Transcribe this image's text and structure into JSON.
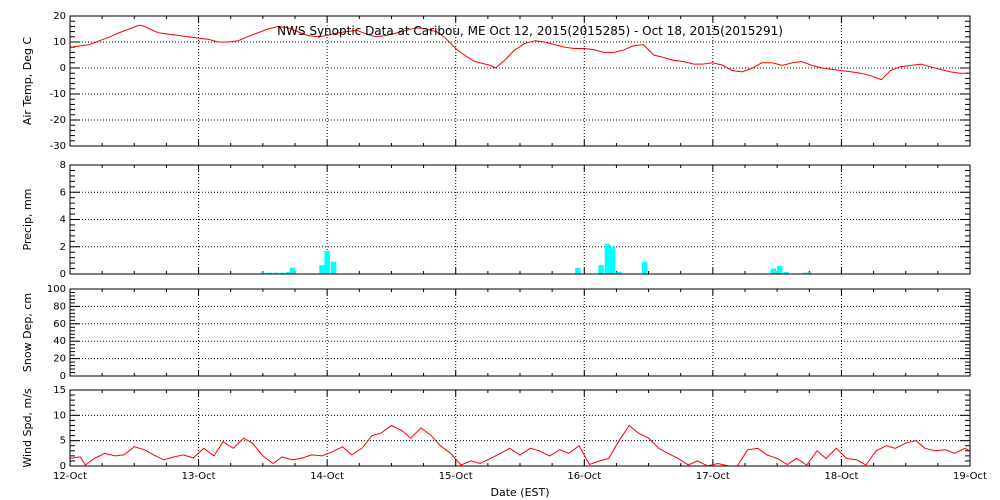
{
  "title": "NWS Synoptic Data at Caribou, ME   Oct 12, 2015(2015285) - Oct 18, 2015(2015291)",
  "xlabel": "Date (EST)",
  "colors": {
    "air_temp": "#ff0000",
    "precip": "#00ffff",
    "snow": "#0000ff",
    "wind": "#ff0000",
    "grid": "#000000"
  },
  "chart_data": [
    {
      "type": "line",
      "ylabel": "Air Temp, Deg C",
      "ylim": [
        -30,
        20
      ],
      "yticks": [
        -30,
        -20,
        -10,
        0,
        10,
        20
      ],
      "xlim": [
        0,
        7
      ],
      "xtick_labels": [
        "12-Oct",
        "13-Oct",
        "14-Oct",
        "15-Oct",
        "16-Oct",
        "17-Oct",
        "18-Oct",
        "19-Oct"
      ],
      "grid": true,
      "series": [
        {
          "x": [
            0.0,
            0.08,
            0.15,
            0.23,
            0.31,
            0.38,
            0.46,
            0.54,
            0.58,
            0.62,
            0.69,
            0.77,
            0.85,
            0.92,
            1.0,
            1.08,
            1.15,
            1.23,
            1.31,
            1.38,
            1.46,
            1.54,
            1.62,
            1.69,
            1.77,
            1.85,
            1.92,
            2.0,
            2.08,
            2.15,
            2.23,
            2.31,
            2.38,
            2.46,
            2.54,
            2.62,
            2.69,
            2.77,
            2.85,
            2.92,
            3.0,
            3.08,
            3.15,
            3.23,
            3.27,
            3.31,
            3.38,
            3.46,
            3.54,
            3.62,
            3.69,
            3.77,
            3.85,
            3.92,
            4.0,
            4.08,
            4.15,
            4.23,
            4.31,
            4.38,
            4.46,
            4.54,
            4.62,
            4.69,
            4.77,
            4.85,
            4.92,
            5.0,
            5.08,
            5.15,
            5.23,
            5.31,
            5.38,
            5.46,
            5.54,
            5.62,
            5.69,
            5.77,
            5.85,
            5.92,
            6.0,
            6.08,
            6.15,
            6.23,
            6.31,
            6.38,
            6.46,
            6.54,
            6.62,
            6.69,
            6.77,
            6.85,
            6.92,
            7.0
          ],
          "y": [
            8,
            8.5,
            9,
            10.5,
            12,
            13.5,
            15,
            16.5,
            16,
            15,
            13.5,
            13,
            12.5,
            12,
            11.5,
            11,
            10,
            10,
            10.5,
            12,
            13.5,
            15,
            16,
            15.5,
            14,
            12.5,
            12,
            12.5,
            13.5,
            14,
            14.5,
            13,
            12,
            12.5,
            13.5,
            14.5,
            15.5,
            15,
            14,
            11.5,
            7.5,
            4.5,
            2.5,
            1.5,
            1,
            0,
            3,
            7,
            9.5,
            10.5,
            10,
            9,
            8,
            7.5,
            7.5,
            7,
            6,
            6,
            7,
            8.5,
            9,
            5,
            4,
            3,
            2.5,
            1.5,
            1.5,
            2,
            1,
            -1,
            -1.5,
            0,
            2,
            2,
            1,
            2,
            2.5,
            1,
            0,
            -0.5,
            -1,
            -1.5,
            -2,
            -3,
            -4.5,
            -1,
            0.5,
            1,
            1.5,
            0.5,
            -0.5,
            -1.5,
            -2,
            -2
          ]
        }
      ]
    },
    {
      "type": "bar",
      "ylabel": "Precip, mm",
      "ylim": [
        0,
        8
      ],
      "yticks": [
        0,
        2,
        4,
        6,
        8
      ],
      "xlim": [
        0,
        7
      ],
      "grid": true,
      "x": [
        1.5,
        1.55,
        1.6,
        1.65,
        1.7,
        1.73,
        1.96,
        2.0,
        2.05,
        3.95,
        4.13,
        4.18,
        4.22,
        4.27,
        4.47,
        5.47,
        5.52,
        5.57,
        5.72,
        5.75
      ],
      "values": [
        0.1,
        0.1,
        0.1,
        0.1,
        0.15,
        0.45,
        0.65,
        1.7,
        0.9,
        0.45,
        0.65,
        2.2,
        2.0,
        0.15,
        0.9,
        0.4,
        0.6,
        0.15,
        0.1,
        0.1
      ]
    },
    {
      "type": "line",
      "ylabel": "Snow Dep, cm",
      "ylim": [
        0,
        100
      ],
      "yticks": [
        0,
        20,
        40,
        60,
        80,
        100
      ],
      "xlim": [
        0,
        7
      ],
      "grid": true,
      "series": []
    },
    {
      "type": "line",
      "ylabel": "Wind Spd, m/s",
      "ylim": [
        0,
        15
      ],
      "yticks": [
        0,
        5,
        10,
        15
      ],
      "xlim": [
        0,
        7
      ],
      "grid": true,
      "series": [
        {
          "x": [
            0.0,
            0.08,
            0.12,
            0.19,
            0.27,
            0.35,
            0.42,
            0.5,
            0.58,
            0.65,
            0.73,
            0.81,
            0.88,
            0.96,
            1.04,
            1.12,
            1.19,
            1.27,
            1.35,
            1.42,
            1.5,
            1.58,
            1.65,
            1.73,
            1.81,
            1.88,
            1.96,
            2.04,
            2.12,
            2.19,
            2.27,
            2.35,
            2.42,
            2.5,
            2.58,
            2.65,
            2.73,
            2.81,
            2.88,
            2.96,
            3.04,
            3.12,
            3.19,
            3.27,
            3.35,
            3.42,
            3.5,
            3.58,
            3.65,
            3.73,
            3.81,
            3.88,
            3.96,
            4.04,
            4.12,
            4.19,
            4.27,
            4.35,
            4.42,
            4.5,
            4.58,
            4.65,
            4.73,
            4.81,
            4.88,
            4.96,
            5.04,
            5.12,
            5.19,
            5.27,
            5.35,
            5.42,
            5.5,
            5.58,
            5.65,
            5.73,
            5.81,
            5.88,
            5.96,
            6.04,
            6.12,
            6.19,
            6.27,
            6.35,
            6.42,
            6.5,
            6.58,
            6.65,
            6.73,
            6.81,
            6.88,
            6.96,
            7.0
          ],
          "y": [
            1.5,
            1.8,
            0.2,
            1.5,
            2.5,
            2,
            2.2,
            3.8,
            3.2,
            2.2,
            1.2,
            1.8,
            2.2,
            1.6,
            3.5,
            2,
            4.8,
            3.5,
            5.5,
            4.5,
            2,
            0.5,
            1.8,
            1.2,
            1.6,
            2.2,
            2,
            2.8,
            3.8,
            2.2,
            3.5,
            6,
            6.5,
            8,
            7,
            5.5,
            7.5,
            6,
            4,
            2.5,
            0.2,
            1,
            0.5,
            1.5,
            2.5,
            3.5,
            2.2,
            3.5,
            3,
            2,
            3.2,
            2.5,
            4,
            0.3,
            1,
            1.5,
            5,
            8,
            6.5,
            5.5,
            3.5,
            2.5,
            1.5,
            0.2,
            1,
            0,
            0.5,
            0,
            0,
            3.2,
            3.5,
            2.2,
            1.5,
            0.3,
            1.5,
            0.2,
            3,
            1.5,
            3.5,
            1.5,
            1.2,
            0.2,
            3,
            4,
            3.5,
            4.5,
            5,
            3.5,
            3,
            3.2,
            2.5,
            3.5,
            3
          ]
        }
      ]
    }
  ]
}
